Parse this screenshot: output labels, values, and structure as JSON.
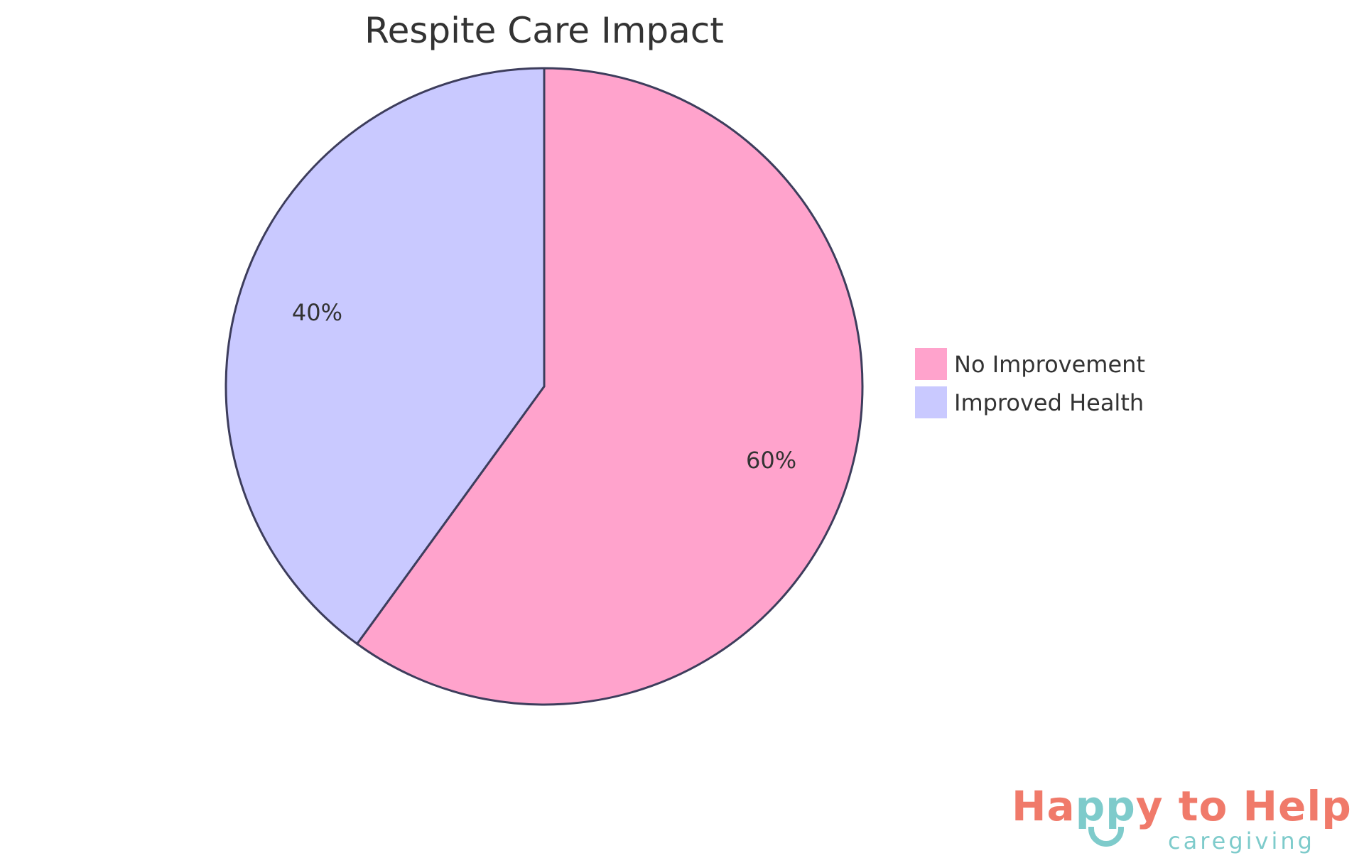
{
  "chart_data": {
    "type": "pie",
    "title": "Respite Care Impact",
    "slices": [
      {
        "label": "No Improvement",
        "value": 60,
        "display": "60%",
        "color": "#ffa3cc"
      },
      {
        "label": "Improved Health",
        "value": 40,
        "display": "40%",
        "color": "#c9c9ff"
      }
    ],
    "stroke_color": "#3d3d5c",
    "legend_position": "right"
  },
  "logo": {
    "brand_start": "Ha",
    "brand_pp": "pp",
    "brand_end": "y to Help",
    "tagline": "caregiving",
    "colors": {
      "coral": "#f07a6a",
      "teal": "#7ecbcb"
    }
  }
}
